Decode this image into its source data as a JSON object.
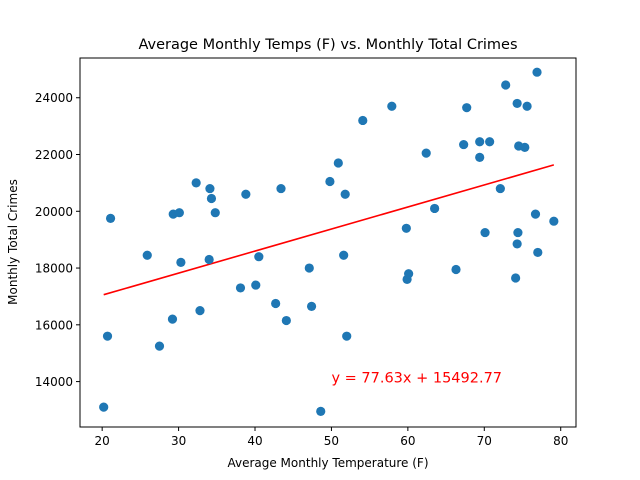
{
  "chart_data": {
    "type": "scatter",
    "title": "Average Monthly Temps (F) vs. Monthly Total Crimes",
    "xlabel": "Average Monthly Temperature (F)",
    "ylabel": "Monthly Total Crimes",
    "xlim": [
      17.1,
      82.0
    ],
    "ylim": [
      12400,
      25400
    ],
    "xticks": [
      20,
      30,
      40,
      50,
      60,
      70,
      80
    ],
    "yticks": [
      14000,
      16000,
      18000,
      20000,
      22000,
      24000
    ],
    "grid": false,
    "point_color": "#1f77b4",
    "line_color": "#ff0000",
    "points": [
      {
        "x": 20.2,
        "y": 13100
      },
      {
        "x": 20.7,
        "y": 15600
      },
      {
        "x": 21.1,
        "y": 19750
      },
      {
        "x": 25.9,
        "y": 18450
      },
      {
        "x": 27.5,
        "y": 15250
      },
      {
        "x": 29.2,
        "y": 16200
      },
      {
        "x": 29.3,
        "y": 19900
      },
      {
        "x": 30.1,
        "y": 19950
      },
      {
        "x": 30.3,
        "y": 18200
      },
      {
        "x": 32.3,
        "y": 21000
      },
      {
        "x": 32.8,
        "y": 16500
      },
      {
        "x": 34.0,
        "y": 18300
      },
      {
        "x": 34.1,
        "y": 20800
      },
      {
        "x": 34.3,
        "y": 20450
      },
      {
        "x": 34.8,
        "y": 19950
      },
      {
        "x": 38.1,
        "y": 17300
      },
      {
        "x": 38.8,
        "y": 20600
      },
      {
        "x": 40.1,
        "y": 17400
      },
      {
        "x": 40.5,
        "y": 18400
      },
      {
        "x": 42.7,
        "y": 16750
      },
      {
        "x": 43.4,
        "y": 20800
      },
      {
        "x": 44.1,
        "y": 16150
      },
      {
        "x": 47.1,
        "y": 18000
      },
      {
        "x": 47.4,
        "y": 16650
      },
      {
        "x": 48.6,
        "y": 12950
      },
      {
        "x": 49.8,
        "y": 21050
      },
      {
        "x": 50.9,
        "y": 21700
      },
      {
        "x": 51.6,
        "y": 18450
      },
      {
        "x": 51.8,
        "y": 20600
      },
      {
        "x": 52.0,
        "y": 15600
      },
      {
        "x": 54.1,
        "y": 23200
      },
      {
        "x": 57.9,
        "y": 23700
      },
      {
        "x": 59.8,
        "y": 19400
      },
      {
        "x": 59.9,
        "y": 17600
      },
      {
        "x": 60.1,
        "y": 17800
      },
      {
        "x": 62.4,
        "y": 22050
      },
      {
        "x": 63.5,
        "y": 20100
      },
      {
        "x": 66.3,
        "y": 17950
      },
      {
        "x": 67.3,
        "y": 22350
      },
      {
        "x": 67.7,
        "y": 23650
      },
      {
        "x": 69.4,
        "y": 22450
      },
      {
        "x": 69.4,
        "y": 21900
      },
      {
        "x": 70.1,
        "y": 19250
      },
      {
        "x": 70.7,
        "y": 22450
      },
      {
        "x": 72.1,
        "y": 20800
      },
      {
        "x": 72.8,
        "y": 24450
      },
      {
        "x": 74.1,
        "y": 17650
      },
      {
        "x": 74.3,
        "y": 23800
      },
      {
        "x": 74.3,
        "y": 18850
      },
      {
        "x": 74.4,
        "y": 19250
      },
      {
        "x": 74.5,
        "y": 22300
      },
      {
        "x": 75.3,
        "y": 22250
      },
      {
        "x": 75.6,
        "y": 23700
      },
      {
        "x": 76.7,
        "y": 19900
      },
      {
        "x": 76.9,
        "y": 24900
      },
      {
        "x": 77.0,
        "y": 18550
      },
      {
        "x": 79.1,
        "y": 19650
      }
    ],
    "regression": {
      "slope": 77.63,
      "intercept": 15492.77,
      "x_range": [
        20.2,
        79.1
      ]
    },
    "annotation": {
      "text": "y = 77.63x + 15492.77",
      "x": 50,
      "y": 14000,
      "color": "#ff0000"
    }
  }
}
